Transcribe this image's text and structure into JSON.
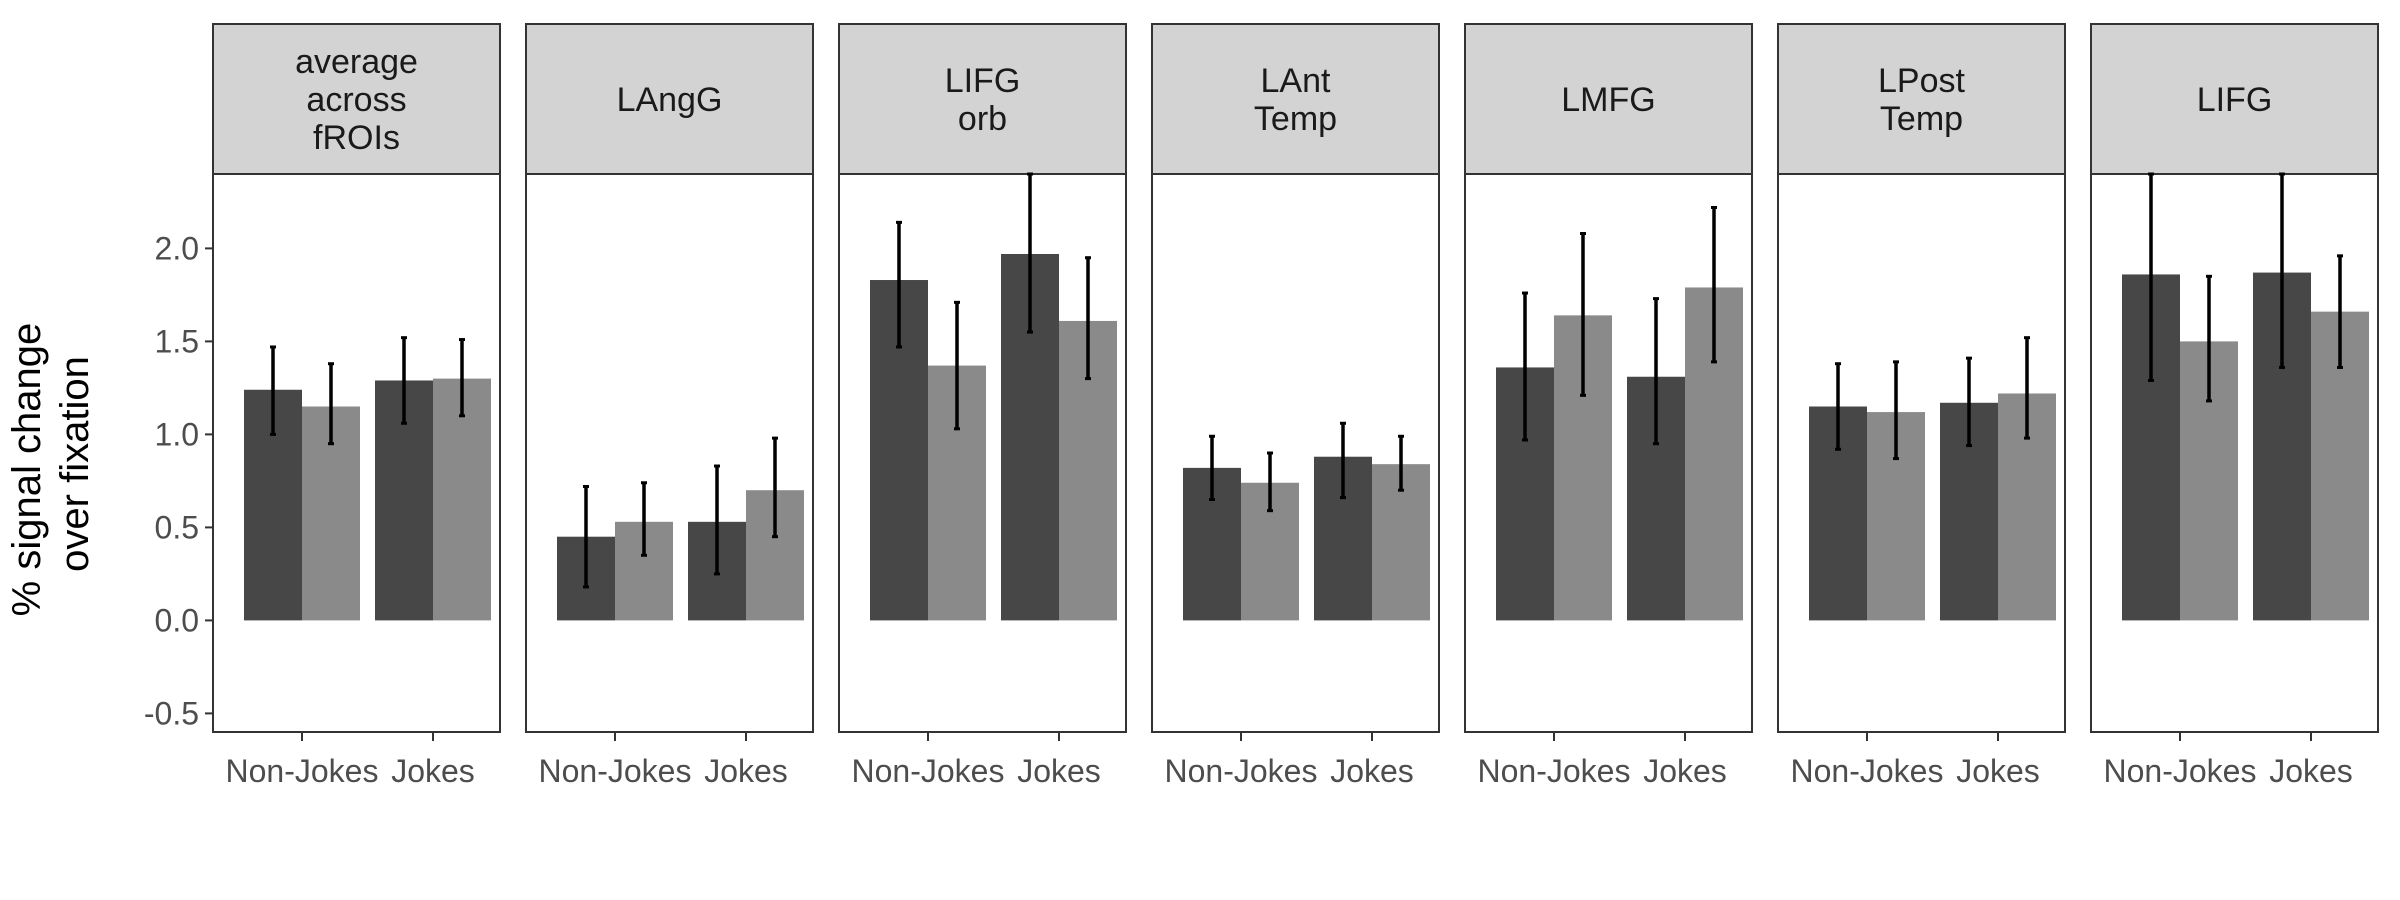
{
  "chart_data": {
    "type": "bar",
    "ylabel_lines": [
      "% signal change",
      "over fixation"
    ],
    "ylim": [
      -0.6,
      2.4
    ],
    "yticks": [
      -0.5,
      0.0,
      0.5,
      1.0,
      1.5,
      2.0
    ],
    "ytick_labels": [
      "-0.5",
      "0.0",
      "0.5",
      "1.0",
      "1.5",
      "2.0"
    ],
    "categories": [
      "Non-Jokes",
      "Jokes"
    ],
    "colors": {
      "dark": "#474747",
      "light": "#8a8a8a",
      "strip": "#d3d3d3",
      "error": "#000000"
    },
    "legend": "none",
    "panels": [
      {
        "title_lines": [
          "average",
          "across",
          "fROIs"
        ],
        "bars": [
          {
            "category": "Non-Jokes",
            "dark": {
              "value": 1.24,
              "lo": 1.0,
              "hi": 1.47
            },
            "light": {
              "value": 1.15,
              "lo": 0.95,
              "hi": 1.38
            }
          },
          {
            "category": "Jokes",
            "dark": {
              "value": 1.29,
              "lo": 1.06,
              "hi": 1.52
            },
            "light": {
              "value": 1.3,
              "lo": 1.1,
              "hi": 1.51
            }
          }
        ]
      },
      {
        "title_lines": [
          "LAngG"
        ],
        "bars": [
          {
            "category": "Non-Jokes",
            "dark": {
              "value": 0.45,
              "lo": 0.18,
              "hi": 0.72
            },
            "light": {
              "value": 0.53,
              "lo": 0.35,
              "hi": 0.74
            }
          },
          {
            "category": "Jokes",
            "dark": {
              "value": 0.53,
              "lo": 0.25,
              "hi": 0.83
            },
            "light": {
              "value": 0.7,
              "lo": 0.45,
              "hi": 0.98
            }
          }
        ]
      },
      {
        "title_lines": [
          "LIFG",
          "orb"
        ],
        "bars": [
          {
            "category": "Non-Jokes",
            "dark": {
              "value": 1.83,
              "lo": 1.47,
              "hi": 2.14
            },
            "light": {
              "value": 1.37,
              "lo": 1.03,
              "hi": 1.71
            }
          },
          {
            "category": "Jokes",
            "dark": {
              "value": 1.97,
              "lo": 1.55,
              "hi": 2.4
            },
            "light": {
              "value": 1.61,
              "lo": 1.3,
              "hi": 1.95
            }
          }
        ]
      },
      {
        "title_lines": [
          "LAnt",
          "Temp"
        ],
        "bars": [
          {
            "category": "Non-Jokes",
            "dark": {
              "value": 0.82,
              "lo": 0.65,
              "hi": 0.99
            },
            "light": {
              "value": 0.74,
              "lo": 0.59,
              "hi": 0.9
            }
          },
          {
            "category": "Jokes",
            "dark": {
              "value": 0.88,
              "lo": 0.66,
              "hi": 1.06
            },
            "light": {
              "value": 0.84,
              "lo": 0.7,
              "hi": 0.99
            }
          }
        ]
      },
      {
        "title_lines": [
          "LMFG"
        ],
        "bars": [
          {
            "category": "Non-Jokes",
            "dark": {
              "value": 1.36,
              "lo": 0.97,
              "hi": 1.76
            },
            "light": {
              "value": 1.64,
              "lo": 1.21,
              "hi": 2.08
            }
          },
          {
            "category": "Jokes",
            "dark": {
              "value": 1.31,
              "lo": 0.95,
              "hi": 1.73
            },
            "light": {
              "value": 1.79,
              "lo": 1.39,
              "hi": 2.22
            }
          }
        ]
      },
      {
        "title_lines": [
          "LPost",
          "Temp"
        ],
        "bars": [
          {
            "category": "Non-Jokes",
            "dark": {
              "value": 1.15,
              "lo": 0.92,
              "hi": 1.38
            },
            "light": {
              "value": 1.12,
              "lo": 0.87,
              "hi": 1.39
            }
          },
          {
            "category": "Jokes",
            "dark": {
              "value": 1.17,
              "lo": 0.94,
              "hi": 1.41
            },
            "light": {
              "value": 1.22,
              "lo": 0.98,
              "hi": 1.52
            }
          }
        ]
      },
      {
        "title_lines": [
          "LIFG"
        ],
        "bars": [
          {
            "category": "Non-Jokes",
            "dark": {
              "value": 1.86,
              "lo": 1.29,
              "hi": 2.4
            },
            "light": {
              "value": 1.5,
              "lo": 1.18,
              "hi": 1.85
            }
          },
          {
            "category": "Jokes",
            "dark": {
              "value": 1.87,
              "lo": 1.36,
              "hi": 2.4
            },
            "light": {
              "value": 1.66,
              "lo": 1.36,
              "hi": 1.96
            }
          }
        ]
      }
    ]
  }
}
